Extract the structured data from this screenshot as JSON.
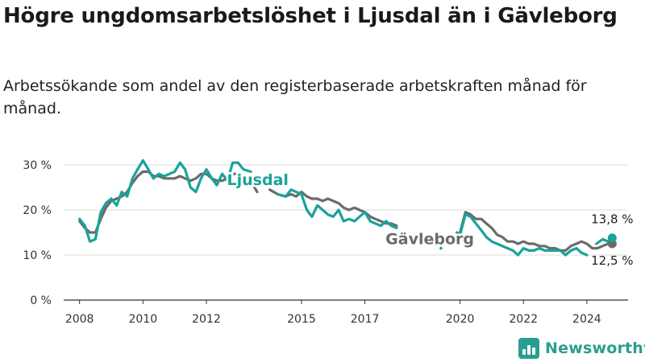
{
  "title": "Högre ungdomsarbetslöshet i Ljusdal än i Gävleborg",
  "subtitle": "Arbetssökande som andel av den registerbaserade arbetskraften månad för månad.",
  "brand": {
    "name": "Newsworthy",
    "icon": "bar-chart-icon"
  },
  "chart_data": {
    "type": "line",
    "title": "Högre ungdomsarbetslöshet i Ljusdal än i Gävleborg",
    "subtitle": "Arbetssökande som andel av den registerbaserade arbetskraften månad för månad.",
    "xlabel": "",
    "ylabel": "",
    "xlim": [
      2007.5,
      2025.3
    ],
    "ylim": [
      0,
      30
    ],
    "y_ticks": [
      0,
      10,
      20,
      30
    ],
    "y_tick_labels": [
      "0 %",
      "10 %",
      "20 %",
      "30 %"
    ],
    "x_ticks": [
      2008,
      2010,
      2012,
      2015,
      2017,
      2020,
      2022,
      2024
    ],
    "x_tick_labels": [
      "2008",
      "2010",
      "2012",
      "2015",
      "2017",
      "2020",
      "2022",
      "2024"
    ],
    "grid": true,
    "legend": "inline labels",
    "end_labels": [
      "13,8 %",
      "12,5 %"
    ],
    "series": [
      {
        "name": "Ljusdal",
        "color": "#1aa39a",
        "end_label": "13,8 %",
        "points": [
          [
            2008.0,
            18.0
          ],
          [
            2008.17,
            16.5
          ],
          [
            2008.33,
            13.0
          ],
          [
            2008.5,
            13.5
          ],
          [
            2008.67,
            19.5
          ],
          [
            2008.83,
            21.5
          ],
          [
            2009.0,
            22.5
          ],
          [
            2009.17,
            21.0
          ],
          [
            2009.33,
            24.0
          ],
          [
            2009.5,
            23.0
          ],
          [
            2009.67,
            27.0
          ],
          [
            2009.83,
            29.0
          ],
          [
            2010.0,
            31.0
          ],
          [
            2010.17,
            29.0
          ],
          [
            2010.33,
            27.0
          ],
          [
            2010.5,
            28.0
          ],
          [
            2010.67,
            27.5
          ],
          [
            2010.83,
            28.0
          ],
          [
            2011.0,
            28.5
          ],
          [
            2011.17,
            30.5
          ],
          [
            2011.33,
            29.0
          ],
          [
            2011.5,
            25.0
          ],
          [
            2011.67,
            24.0
          ],
          [
            2011.83,
            27.0
          ],
          [
            2012.0,
            29.0
          ],
          [
            2012.17,
            27.0
          ],
          [
            2012.33,
            25.5
          ],
          [
            2012.5,
            28.0
          ],
          [
            2012.67,
            26.5
          ],
          [
            2012.83,
            30.5
          ],
          [
            2013.0,
            30.5
          ],
          [
            2013.17,
            29.0
          ],
          [
            2013.4,
            28.5
          ],
          null,
          [
            2014.25,
            23.5
          ],
          [
            2014.5,
            23.0
          ],
          [
            2014.67,
            24.5
          ],
          [
            2014.83,
            24.0
          ],
          [
            2015.0,
            23.5
          ],
          [
            2015.17,
            20.0
          ],
          [
            2015.33,
            18.5
          ],
          [
            2015.5,
            21.0
          ],
          [
            2015.67,
            20.0
          ],
          [
            2015.83,
            19.0
          ],
          [
            2016.0,
            18.5
          ],
          [
            2016.17,
            20.0
          ],
          [
            2016.33,
            17.5
          ],
          [
            2016.5,
            18.0
          ],
          [
            2016.67,
            17.5
          ],
          [
            2016.83,
            18.5
          ],
          [
            2017.0,
            19.5
          ],
          [
            2017.17,
            17.5
          ],
          [
            2017.33,
            17.0
          ],
          [
            2017.5,
            16.5
          ],
          [
            2017.67,
            17.5
          ],
          [
            2017.83,
            16.5
          ],
          [
            2018.0,
            16.0
          ],
          null,
          [
            2019.4,
            11.5
          ],
          null,
          [
            2019.9,
            15.0
          ],
          [
            2020.0,
            14.5
          ],
          [
            2020.17,
            19.0
          ],
          [
            2020.33,
            18.5
          ],
          [
            2020.5,
            17.0
          ],
          [
            2020.67,
            15.5
          ],
          [
            2020.83,
            14.0
          ],
          [
            2021.0,
            13.0
          ],
          [
            2021.17,
            12.5
          ],
          [
            2021.33,
            12.0
          ],
          [
            2021.5,
            11.5
          ],
          [
            2021.67,
            11.0
          ],
          [
            2021.83,
            10.0
          ],
          [
            2022.0,
            11.5
          ],
          [
            2022.17,
            11.0
          ],
          [
            2022.33,
            11.0
          ],
          [
            2022.5,
            11.5
          ],
          [
            2022.67,
            11.0
          ],
          [
            2022.83,
            11.0
          ],
          [
            2023.0,
            11.0
          ],
          [
            2023.17,
            11.0
          ],
          [
            2023.33,
            10.0
          ],
          [
            2023.5,
            11.0
          ],
          [
            2023.67,
            11.5
          ],
          [
            2023.83,
            10.5
          ],
          [
            2024.0,
            10.0
          ],
          null,
          [
            2024.3,
            12.5
          ],
          [
            2024.5,
            13.5
          ],
          [
            2024.67,
            13.0
          ],
          [
            2024.8,
            13.8
          ]
        ]
      },
      {
        "name": "Gävleborg",
        "color": "#6b6b6b",
        "end_label": "12,5 %",
        "points": [
          [
            2008.0,
            17.5
          ],
          [
            2008.17,
            16.0
          ],
          [
            2008.33,
            15.0
          ],
          [
            2008.5,
            15.0
          ],
          [
            2008.67,
            18.0
          ],
          [
            2008.83,
            20.5
          ],
          [
            2009.0,
            22.0
          ],
          [
            2009.17,
            22.5
          ],
          [
            2009.33,
            23.0
          ],
          [
            2009.5,
            24.0
          ],
          [
            2009.67,
            26.0
          ],
          [
            2009.83,
            27.5
          ],
          [
            2010.0,
            28.5
          ],
          [
            2010.17,
            28.5
          ],
          [
            2010.33,
            27.5
          ],
          [
            2010.5,
            27.5
          ],
          [
            2010.67,
            27.0
          ],
          [
            2010.83,
            27.0
          ],
          [
            2011.0,
            27.0
          ],
          [
            2011.17,
            27.5
          ],
          [
            2011.33,
            27.0
          ],
          [
            2011.5,
            26.5
          ],
          [
            2011.67,
            27.0
          ],
          [
            2011.83,
            28.0
          ],
          [
            2012.0,
            28.0
          ],
          [
            2012.17,
            27.0
          ],
          [
            2012.33,
            26.5
          ],
          [
            2012.5,
            26.5
          ],
          [
            2012.67,
            27.0
          ],
          [
            2012.83,
            28.0
          ],
          [
            2013.0,
            28.0
          ],
          [
            2013.17,
            27.0
          ],
          [
            2013.4,
            26.5
          ],
          [
            2013.6,
            24.0
          ],
          null,
          [
            2014.0,
            24.5
          ],
          [
            2014.25,
            23.5
          ],
          [
            2014.5,
            23.0
          ],
          [
            2014.67,
            23.5
          ],
          [
            2014.83,
            23.0
          ],
          [
            2015.0,
            24.0
          ],
          [
            2015.17,
            23.0
          ],
          [
            2015.33,
            22.5
          ],
          [
            2015.5,
            22.5
          ],
          [
            2015.67,
            22.0
          ],
          [
            2015.83,
            22.5
          ],
          [
            2016.0,
            22.0
          ],
          [
            2016.17,
            21.5
          ],
          [
            2016.33,
            20.5
          ],
          [
            2016.5,
            20.0
          ],
          [
            2016.67,
            20.5
          ],
          [
            2016.83,
            20.0
          ],
          [
            2017.0,
            19.5
          ],
          [
            2017.17,
            18.5
          ],
          [
            2017.33,
            18.0
          ],
          [
            2017.5,
            17.5
          ],
          [
            2017.67,
            17.0
          ],
          [
            2017.83,
            17.0
          ],
          [
            2018.0,
            16.5
          ],
          null,
          [
            2020.0,
            15.0
          ],
          [
            2020.17,
            19.5
          ],
          [
            2020.33,
            19.0
          ],
          [
            2020.5,
            18.0
          ],
          [
            2020.67,
            18.0
          ],
          [
            2020.83,
            17.0
          ],
          [
            2021.0,
            16.0
          ],
          [
            2021.17,
            14.5
          ],
          [
            2021.33,
            14.0
          ],
          [
            2021.5,
            13.0
          ],
          [
            2021.67,
            13.0
          ],
          [
            2021.83,
            12.5
          ],
          [
            2022.0,
            13.0
          ],
          [
            2022.17,
            12.5
          ],
          [
            2022.33,
            12.5
          ],
          [
            2022.5,
            12.0
          ],
          [
            2022.67,
            12.0
          ],
          [
            2022.83,
            11.5
          ],
          [
            2023.0,
            11.5
          ],
          [
            2023.17,
            11.0
          ],
          [
            2023.33,
            11.0
          ],
          [
            2023.5,
            12.0
          ],
          [
            2023.67,
            12.5
          ],
          [
            2023.83,
            13.0
          ],
          [
            2024.0,
            12.5
          ],
          [
            2024.17,
            11.5
          ],
          [
            2024.33,
            11.5
          ],
          [
            2024.5,
            12.0
          ],
          [
            2024.67,
            12.5
          ],
          [
            2024.8,
            12.5
          ]
        ]
      }
    ]
  }
}
